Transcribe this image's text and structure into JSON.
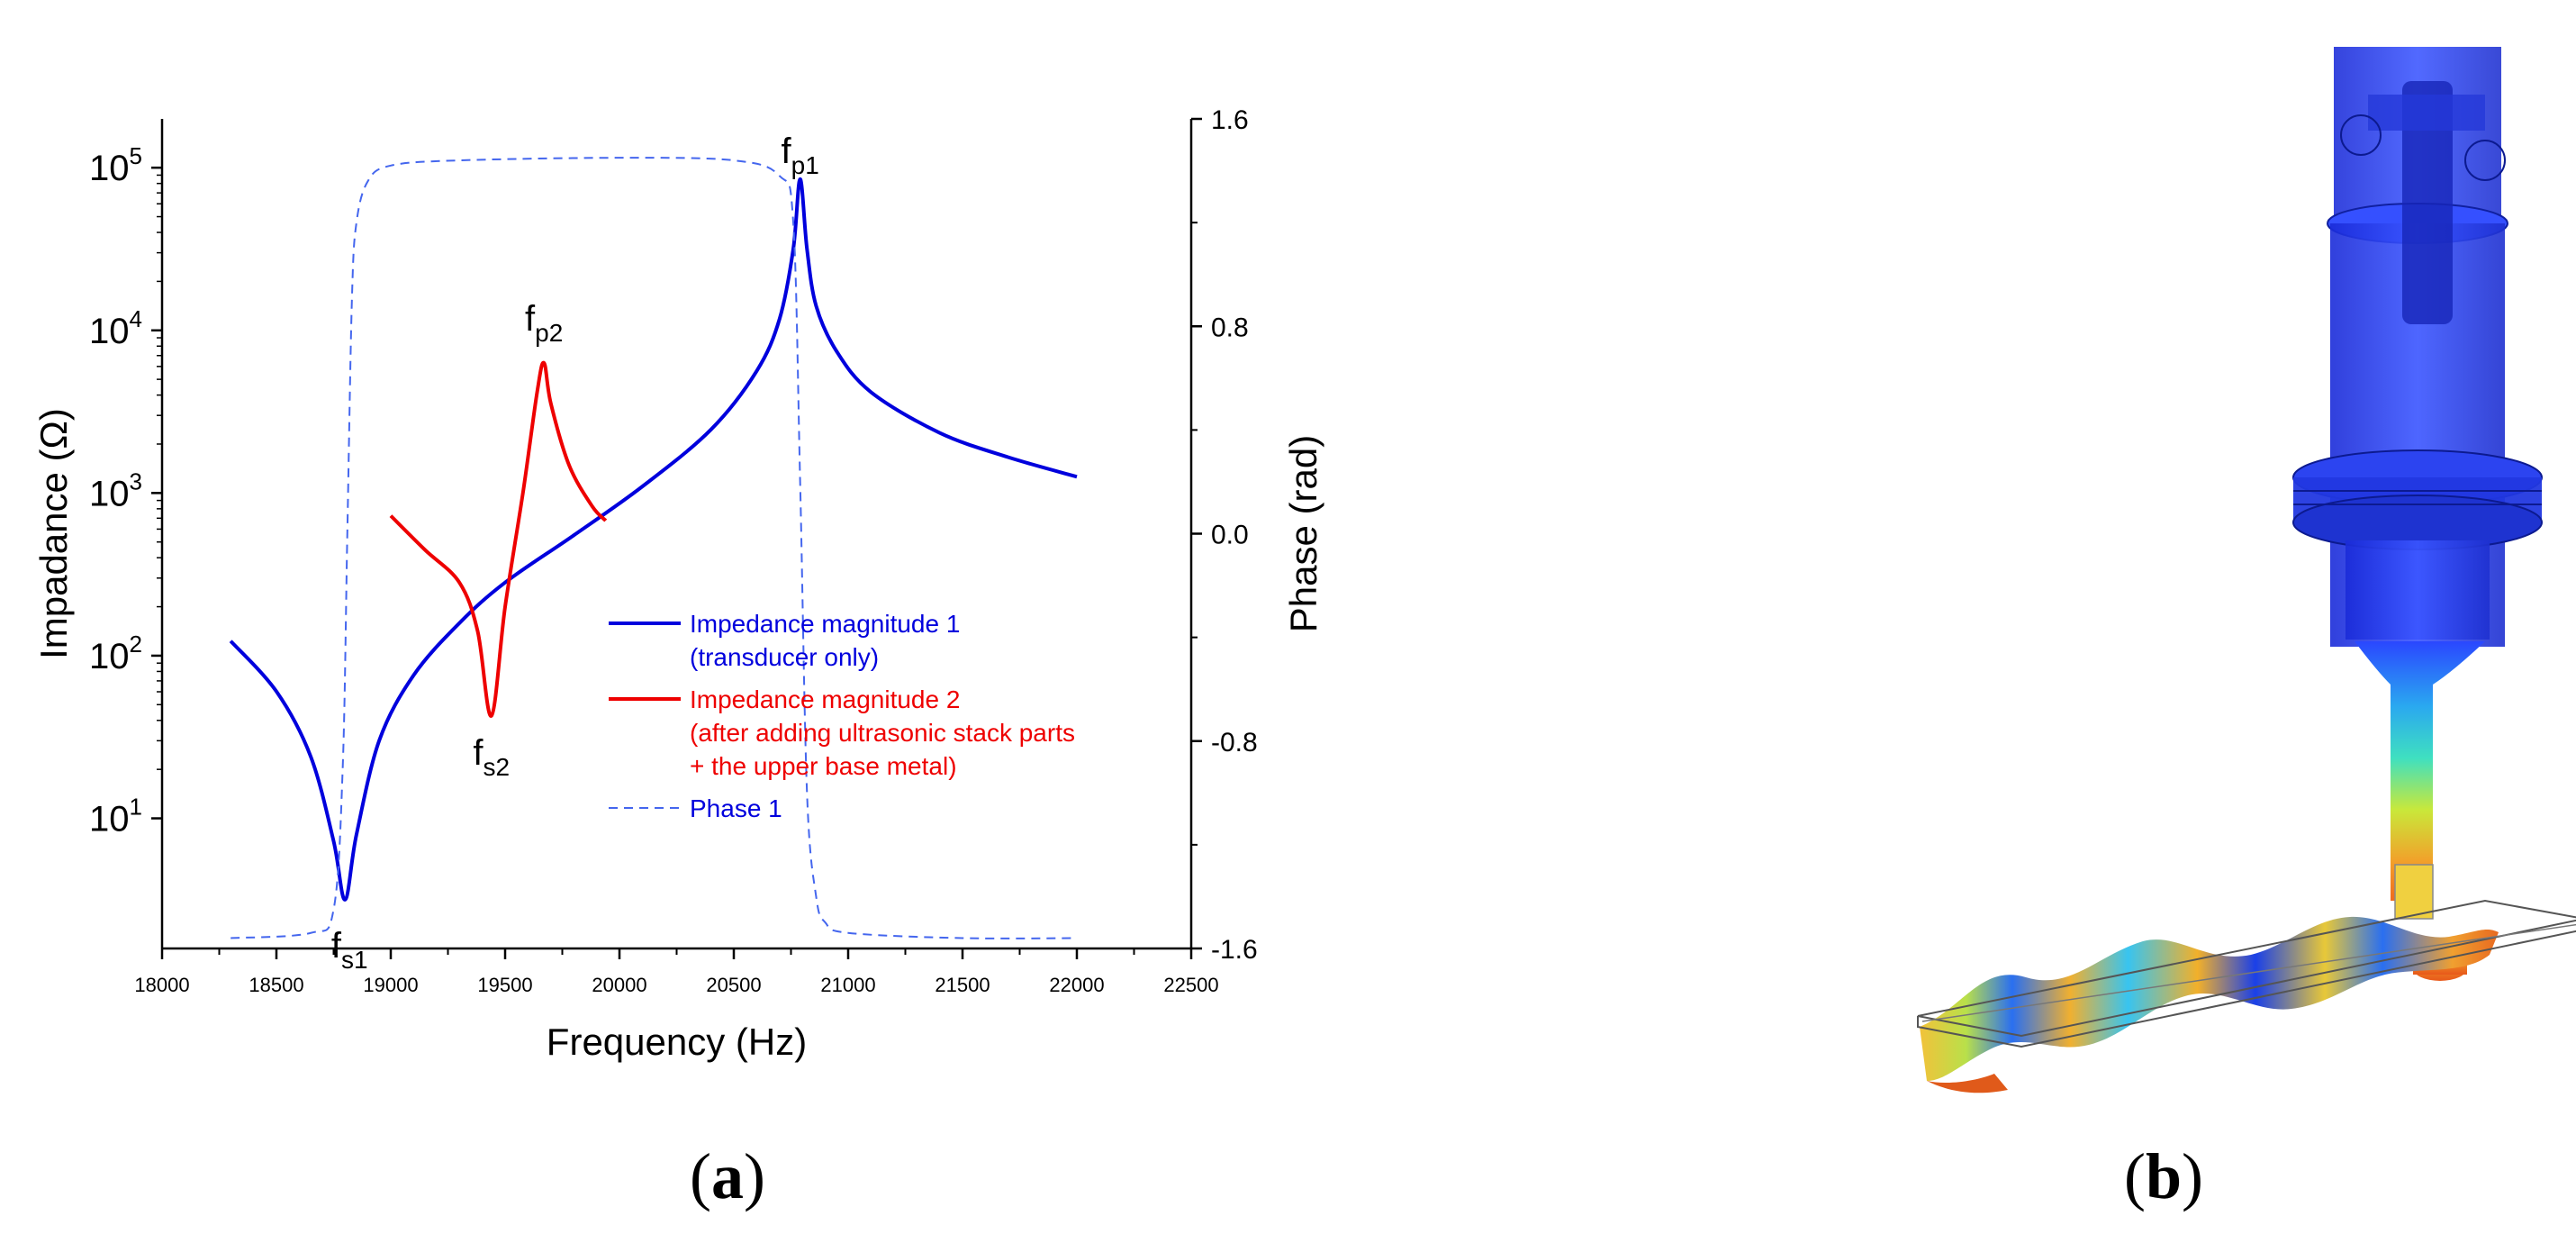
{
  "panels": {
    "a_label": "(a)",
    "a_letter": "a",
    "b_label": "(b)",
    "b_letter": "b"
  },
  "chart_data": {
    "type": "line",
    "xlabel": "Frequency (Hz)",
    "ylabel_left": "Impadance (Ω)",
    "ylabel_right": "Phase (rad)",
    "xlim": [
      18000,
      22500
    ],
    "ylim_left_log10": [
      0.2,
      5.3
    ],
    "ylim_right": [
      -1.6,
      1.6
    ],
    "x_ticks": [
      18000,
      18500,
      19000,
      19500,
      20000,
      20500,
      21000,
      21500,
      22000,
      22500
    ],
    "x_tick_labels": [
      "18000",
      "18500",
      "19000",
      "19500",
      "20000",
      "20500",
      "21000",
      "21500",
      "22000",
      "22500"
    ],
    "y_left_ticks": [
      {
        "base": "10",
        "exp": "1",
        "value": 1
      },
      {
        "base": "10",
        "exp": "2",
        "value": 2
      },
      {
        "base": "10",
        "exp": "3",
        "value": 3
      },
      {
        "base": "10",
        "exp": "4",
        "value": 4
      },
      {
        "base": "10",
        "exp": "5",
        "value": 5
      }
    ],
    "y_right_ticks": [
      1.6,
      0.8,
      0.0,
      -0.8,
      -1.6
    ],
    "y_right_tick_labels": [
      "1.6",
      "0.8",
      "0.0",
      "-0.8",
      "-1.6"
    ],
    "series": [
      {
        "name": "Impedance magnitude 1",
        "axis": "left",
        "color": "#0000dd",
        "dash": "solid",
        "x": [
          18300,
          18500,
          18650,
          18750,
          18800,
          18850,
          18950,
          19100,
          19300,
          19500,
          19800,
          20100,
          20400,
          20600,
          20700,
          20760,
          20790,
          20820,
          20860,
          20950,
          21100,
          21400,
          21700,
          22000
        ],
        "y": [
          2.09,
          1.78,
          1.38,
          0.86,
          0.5,
          0.9,
          1.48,
          1.88,
          2.2,
          2.45,
          2.74,
          3.04,
          3.39,
          3.75,
          4.07,
          4.5,
          4.93,
          4.5,
          4.15,
          3.87,
          3.62,
          3.37,
          3.22,
          3.1
        ]
      },
      {
        "name": "Impedance magnitude 2",
        "axis": "left",
        "color": "#ee0000",
        "dash": "solid",
        "x": [
          19000,
          19150,
          19300,
          19380,
          19440,
          19500,
          19580,
          19640,
          19670,
          19700,
          19780,
          19880,
          19940
        ],
        "y": [
          2.86,
          2.65,
          2.45,
          2.15,
          1.63,
          2.3,
          3.02,
          3.62,
          3.8,
          3.55,
          3.17,
          2.92,
          2.83
        ]
      },
      {
        "name": "Phase 1",
        "axis": "right",
        "color": "#4466ee",
        "dash": "dashed",
        "x": [
          18300,
          18650,
          18750,
          18790,
          18810,
          18830,
          18850,
          18900,
          19000,
          19300,
          20000,
          20500,
          20700,
          20760,
          20790,
          20820,
          20860,
          20900,
          21000,
          21500,
          22000
        ],
        "y": [
          -1.56,
          -1.54,
          -1.45,
          -0.9,
          0.0,
          0.9,
          1.2,
          1.36,
          1.42,
          1.44,
          1.45,
          1.44,
          1.38,
          1.2,
          0.2,
          -1.0,
          -1.4,
          -1.5,
          -1.54,
          -1.56,
          -1.56
        ]
      }
    ],
    "annotations": [
      {
        "base": "f",
        "sub": "p1"
      },
      {
        "base": "f",
        "sub": "p2"
      },
      {
        "base": "f",
        "sub": "s2"
      },
      {
        "base": "f",
        "sub": "s1"
      }
    ],
    "legend": {
      "placement": "center-right",
      "entries": [
        {
          "lines": [
            "Impedance magnitude 1",
            "(transducer only)"
          ],
          "color": "#0000dd",
          "dash": "solid"
        },
        {
          "lines": [
            "Impedance magnitude 2",
            "(after adding ultrasonic stack parts",
            " + the upper base metal)"
          ],
          "color": "#ee0000",
          "dash": "solid"
        },
        {
          "lines": [
            "Phase 1"
          ],
          "color": "#0000dd",
          "line_color": "#4466ee",
          "dash": "dashed"
        }
      ]
    }
  }
}
